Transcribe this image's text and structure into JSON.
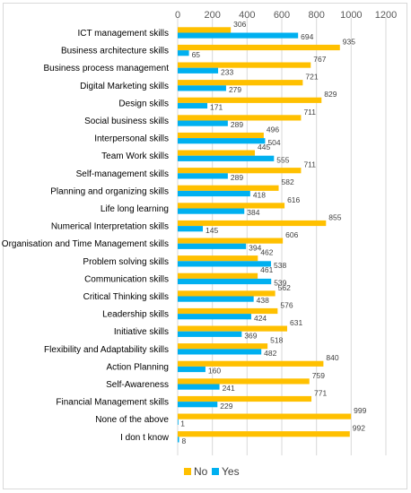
{
  "chart_data": {
    "type": "bar",
    "orientation": "horizontal",
    "categories": [
      "ICT management skills",
      "Business  architecture skills",
      "Business process management",
      "Digital Marketing skills",
      "Design skills",
      "Social business skills",
      "Interpersonal skills",
      "Team Work skills",
      "Self-management skills",
      "Planning and organizing skills",
      "Life long learning",
      "Numerical Interpretation skills",
      "Organisation and Time Management skills",
      "Problem solving skills",
      "Communication skills",
      "Critical Thinking skills",
      "Leadership skills",
      "Initiative skills",
      "Flexibility and Adaptability skills",
      "Action Planning",
      "Self-Awareness",
      "Financial Management skills",
      "None of the above",
      "I don t know"
    ],
    "series": [
      {
        "name": "No",
        "color": "#ffc000",
        "values": [
          306,
          935,
          767,
          721,
          829,
          711,
          496,
          445,
          711,
          582,
          616,
          855,
          606,
          462,
          461,
          562,
          576,
          631,
          518,
          840,
          759,
          771,
          999,
          992
        ]
      },
      {
        "name": "Yes",
        "color": "#00b0f0",
        "values": [
          694,
          65,
          233,
          279,
          171,
          289,
          504,
          555,
          289,
          418,
          384,
          145,
          394,
          538,
          539,
          438,
          424,
          369,
          482,
          160,
          241,
          229,
          1,
          8
        ]
      }
    ],
    "xlim": [
      0,
      1200
    ],
    "xticks": [
      "0",
      "200",
      "400",
      "600",
      "800",
      "1000",
      "1200"
    ],
    "grid": true,
    "legend": "bottom-center"
  }
}
